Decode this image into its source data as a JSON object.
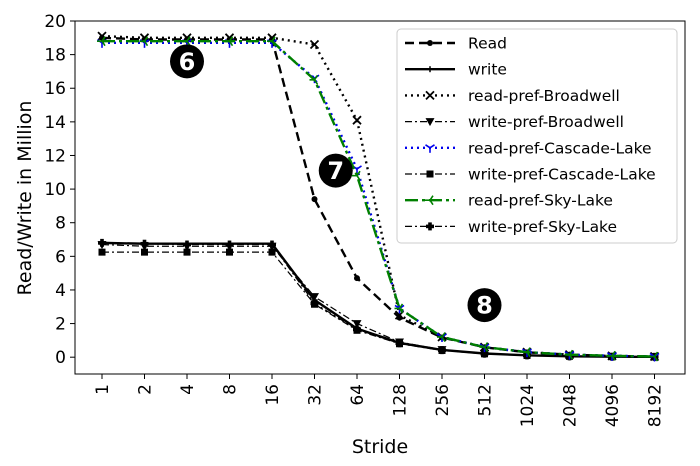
{
  "chart_data": {
    "type": "line",
    "categories": [
      "1",
      "2",
      "4",
      "8",
      "16",
      "32",
      "64",
      "128",
      "256",
      "512",
      "1024",
      "2048",
      "4096",
      "8192"
    ],
    "xlabel": "Stride",
    "ylabel": "Read/Write in Million",
    "ylim": [
      -1,
      20
    ],
    "yticks": [
      0,
      2,
      4,
      6,
      8,
      10,
      12,
      14,
      16,
      18,
      20
    ],
    "grid": false,
    "legend_position": "top-right",
    "series": [
      {
        "name": "Read",
        "color": "#000000",
        "dash": "dashed",
        "marker": "dot",
        "values": [
          19.0,
          18.9,
          18.9,
          18.9,
          18.9,
          9.4,
          4.7,
          2.35,
          1.17,
          0.59,
          0.29,
          0.15,
          0.07,
          0.04
        ]
      },
      {
        "name": "write",
        "color": "#000000",
        "dash": "solid",
        "marker": "plus",
        "values": [
          6.8,
          6.75,
          6.75,
          6.75,
          6.75,
          3.4,
          1.7,
          0.85,
          0.43,
          0.22,
          0.11,
          0.05,
          0.03,
          0.02
        ]
      },
      {
        "name": "read-pref-Broadwell",
        "color": "#000000",
        "dash": "dotted",
        "marker": "x",
        "values": [
          19.1,
          19.0,
          19.0,
          19.0,
          19.0,
          18.6,
          14.1,
          2.5,
          1.2,
          0.6,
          0.3,
          0.15,
          0.08,
          0.04
        ]
      },
      {
        "name": "write-pref-Broadwell",
        "color": "#000000",
        "dash": "dashdot",
        "marker": "triangle-down",
        "values": [
          6.7,
          6.6,
          6.6,
          6.6,
          6.6,
          3.6,
          2.0,
          0.9,
          0.45,
          0.23,
          0.12,
          0.06,
          0.03,
          0.02
        ]
      },
      {
        "name": "read-pref-Cascade-Lake",
        "color": "#0000ee",
        "dash": "dotted",
        "marker": "tri-down",
        "values": [
          18.7,
          18.7,
          18.7,
          18.7,
          18.7,
          16.6,
          11.2,
          2.9,
          1.2,
          0.6,
          0.3,
          0.15,
          0.08,
          0.04
        ]
      },
      {
        "name": "write-pref-Cascade-Lake",
        "color": "#000000",
        "dash": "dashdot",
        "marker": "square",
        "values": [
          6.25,
          6.25,
          6.25,
          6.25,
          6.25,
          3.15,
          1.6,
          0.8,
          0.4,
          0.2,
          0.1,
          0.05,
          0.03,
          0.02
        ]
      },
      {
        "name": "read-pref-Sky-Lake",
        "color": "#008000",
        "dash": "longdashdot",
        "marker": "tri-left",
        "values": [
          18.8,
          18.8,
          18.8,
          18.8,
          18.8,
          16.5,
          10.8,
          2.9,
          1.2,
          0.6,
          0.3,
          0.15,
          0.08,
          0.04
        ]
      },
      {
        "name": "write-pref-Sky-Lake",
        "color": "#000000",
        "dash": "dashdot",
        "marker": "plus-filled",
        "values": [
          6.8,
          6.75,
          6.7,
          6.7,
          6.7,
          3.2,
          1.65,
          0.83,
          0.42,
          0.21,
          0.11,
          0.05,
          0.03,
          0.02
        ]
      }
    ],
    "annotations": [
      {
        "label": "6",
        "x_index": 2,
        "y": 17.6
      },
      {
        "label": "7",
        "x_index": 5.5,
        "y": 11.1
      },
      {
        "label": "8",
        "x_index": 9,
        "y": 3.1
      }
    ]
  }
}
